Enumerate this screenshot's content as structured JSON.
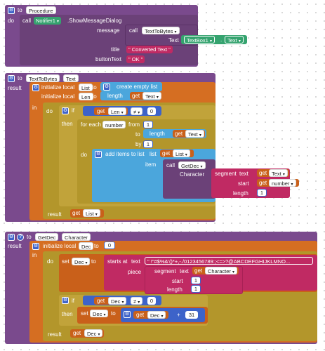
{
  "procedure1": {
    "to": "to",
    "name": "Procedure",
    "do": "do",
    "call": "call",
    "component": "Notifier1",
    "method": ".ShowMessageDialog",
    "message_label": "message",
    "call2": "call",
    "call_target": "TextToBytes",
    "text_label": "Text",
    "textbox": "TextBox1",
    "text_prop": "Text",
    "title_label": "title",
    "title_value": "\" Converted Text \"",
    "buttontext_label": "buttonText",
    "buttontext_value": "\" OK \""
  },
  "procedure2": {
    "to": "to",
    "name": "TextToBytes",
    "param": "Text",
    "result": "result",
    "init1": "initialize local",
    "var1": "List",
    "to1": "to",
    "create_list": "create empty list",
    "init2": "initialize local",
    "var2": "Len",
    "to2": "to",
    "length": "length",
    "get": "get",
    "get_text": "Text",
    "in": "in",
    "do": "do",
    "if": "if",
    "get_len": "Len",
    "neq": "≠",
    "zero": "0",
    "then": "then",
    "for_each": "for each",
    "number": "number",
    "from": "from",
    "one": "1",
    "to3": "to",
    "length2": "length",
    "get_text2": "Text",
    "by": "by",
    "one2": "1",
    "do2": "do",
    "add_items": "add items to list",
    "list_label": "list",
    "get_list": "List",
    "item_label": "item",
    "call": "call",
    "getdec": "GetDec",
    "character_label": "Character",
    "segment": "segment",
    "text_label": "text",
    "get_text3": "Text",
    "start_label": "start",
    "get_number": "number",
    "length_label": "length",
    "one3": "1",
    "result2": "result",
    "get_list2": "List"
  },
  "procedure3": {
    "to": "to",
    "name": "GetDec",
    "param": "Character",
    "result": "result",
    "init": "initialize local",
    "var": "Dec",
    "to1": "to",
    "zero": "0",
    "in": "in",
    "do": "do",
    "set": "set",
    "set_var": "Dec",
    "to2": "to",
    "starts_at": "starts at",
    "text_label": "text",
    "ascii": "\" !\"#$%&'()*+,-./0123456789:;<=>?@ABCDEFGHIJKLMNO...",
    "piece_label": "piece",
    "segment": "segment",
    "text2": "text",
    "get_char": "Character",
    "start_label": "start",
    "one": "1",
    "length_label": "length",
    "one2": "1",
    "if": "if",
    "get_dec": "Dec",
    "neq": "≠",
    "zero2": "0",
    "then": "then",
    "set2": "set",
    "set_var2": "Dec",
    "to3": "to",
    "get_dec2": "Dec",
    "plus": "+",
    "thirtyone": "31",
    "result2": "result",
    "get_dec3": "Dec"
  },
  "colors": {
    "procedure": "#7a4a8d",
    "variable": "#d56e22",
    "control": "#b3962b",
    "list": "#4ba6dc",
    "math": "#3d63c9",
    "text": "#c02a63",
    "component": "#35a36f"
  },
  "icons": [
    "gear-icon",
    "question-icon",
    "dropdown-arrow-icon"
  ]
}
